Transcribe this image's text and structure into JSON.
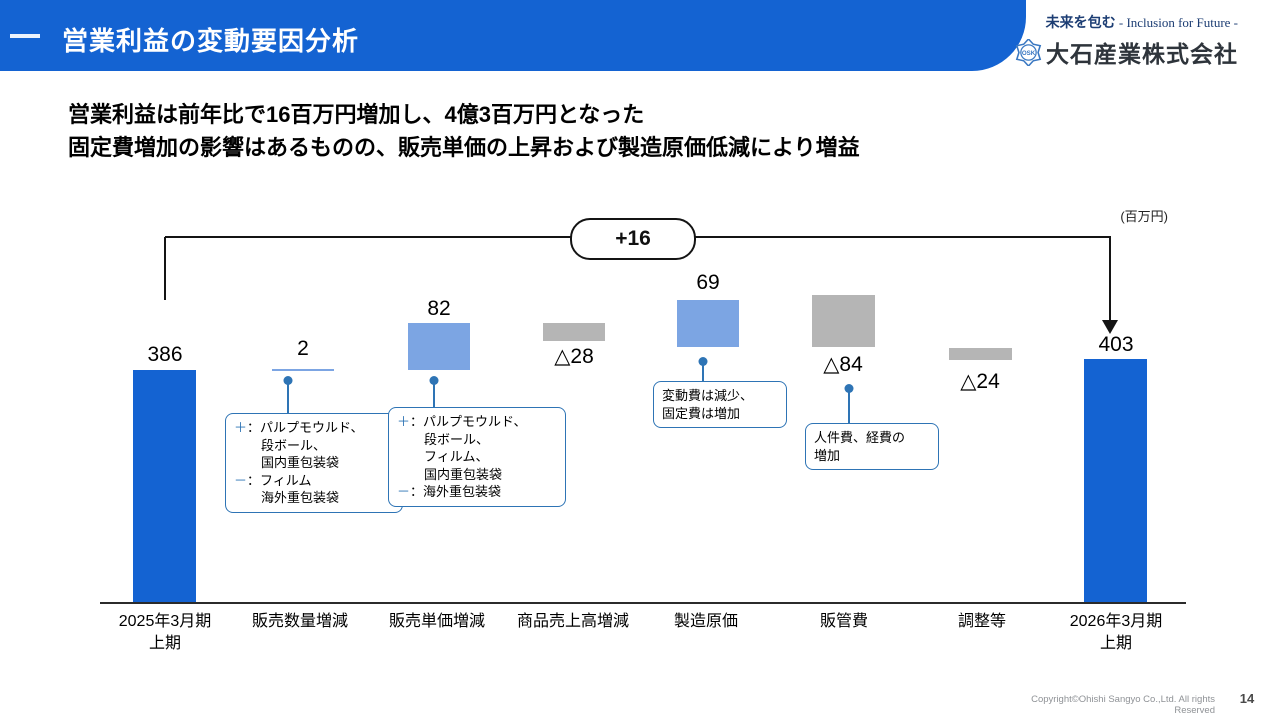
{
  "header": {
    "title": "営業利益の変動要因分析"
  },
  "brand": {
    "tagline_jp": "未来を包む",
    "tagline_en": " - Inclusion for Future -",
    "company": "大石産業株式会社",
    "logo_text": "OSK"
  },
  "lead": {
    "line1": "営業利益は前年比で16百万円増加し、4億3百万円となった",
    "line2": "固定費増加の影響はあるものの、販売単価の上昇および製造原価低減により増益"
  },
  "chart_data": {
    "type": "bar",
    "subtype": "waterfall",
    "title": "営業利益の変動要因分析",
    "unit_label": "(百万円)",
    "total_change_label": "+16",
    "categories": [
      "2025年3月期 上期",
      "販売数量増減",
      "販売単価増減",
      "商品売上高増減",
      "製造原価",
      "販管費",
      "調整等",
      "2026年3月期 上期"
    ],
    "values": [
      386,
      2,
      82,
      -28,
      69,
      -84,
      -24,
      403
    ],
    "bars": [
      {
        "display": "386",
        "value": 386,
        "kind": "total"
      },
      {
        "display": "2",
        "value": 2,
        "kind": "increase"
      },
      {
        "display": "82",
        "value": 82,
        "kind": "increase"
      },
      {
        "display": "△28",
        "value": -28,
        "kind": "decrease"
      },
      {
        "display": "69",
        "value": 69,
        "kind": "increase"
      },
      {
        "display": "△84",
        "value": -84,
        "kind": "decrease"
      },
      {
        "display": "△24",
        "value": -24,
        "kind": "decrease"
      },
      {
        "display": "403",
        "value": 403,
        "kind": "total"
      }
    ],
    "axis_categories": [
      {
        "line1": "2025年3月期",
        "line2": "上期"
      },
      {
        "line1": "販売数量増減",
        "line2": ""
      },
      {
        "line1": "販売単価増減",
        "line2": ""
      },
      {
        "line1": "商品売上高増減",
        "line2": ""
      },
      {
        "line1": "製造原価",
        "line2": ""
      },
      {
        "line1": "販管費",
        "line2": ""
      },
      {
        "line1": "調整等",
        "line2": ""
      },
      {
        "line1": "2026年3月期",
        "line2": "上期"
      }
    ],
    "legend": "none",
    "grid": false
  },
  "callouts": [
    {
      "lines": [
        {
          "sign": "＋",
          "text": "：パルプモウルド、",
          "indent": false
        },
        {
          "sign": "",
          "text": "段ボール、",
          "indent": true
        },
        {
          "sign": "",
          "text": "国内重包装袋",
          "indent": true
        },
        {
          "sign": "－",
          "text": "：フィルム",
          "indent": false
        },
        {
          "sign": "",
          "text": "海外重包装袋",
          "indent": true
        }
      ]
    },
    {
      "lines": [
        {
          "sign": "＋",
          "text": "：パルプモウルド、",
          "indent": false
        },
        {
          "sign": "",
          "text": "段ボール、",
          "indent": true
        },
        {
          "sign": "",
          "text": "フィルム、",
          "indent": true
        },
        {
          "sign": "",
          "text": "国内重包装袋",
          "indent": true
        },
        {
          "sign": "－",
          "text": "：海外重包装袋",
          "indent": false
        }
      ]
    },
    {
      "lines": [
        {
          "sign": "",
          "text": "変動費は減少、",
          "indent": false
        },
        {
          "sign": "",
          "text": "固定費は増加",
          "indent": false
        }
      ]
    },
    {
      "lines": [
        {
          "sign": "",
          "text": "人件費、経費の",
          "indent": false
        },
        {
          "sign": "",
          "text": "増加",
          "indent": false
        }
      ]
    }
  ],
  "footer": {
    "copyright": "Copyright©Ohishi Sangyo Co.,Ltd. All rights Reserved",
    "page": "14"
  },
  "colors": {
    "primary_blue": "#1463d2",
    "light_blue": "#7CA5E3",
    "gray_bar": "#b5b5b5",
    "callout_blue": "#2e74b5",
    "brand_navy": "#1c3d73",
    "company_text": "#2e343b",
    "footer_gray": "#8f9296"
  }
}
